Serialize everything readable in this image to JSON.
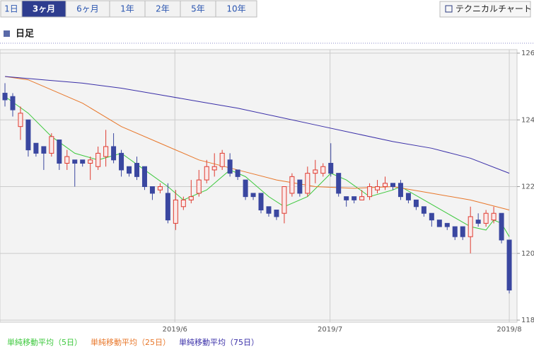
{
  "tabs": [
    {
      "label": "1日",
      "selected": false
    },
    {
      "label": "3ヶ月",
      "selected": true
    },
    {
      "label": "6ヶ月",
      "selected": false
    },
    {
      "label": "1年",
      "selected": false
    },
    {
      "label": "2年",
      "selected": false
    },
    {
      "label": "5年",
      "selected": false
    },
    {
      "label": "10年",
      "selected": false
    }
  ],
  "button": "テクニカルチャート",
  "section_title": "日足",
  "chart_data": {
    "type": "candlestick",
    "candles": {
      "up_color": "#e03c31",
      "down_color": "#3a47a0",
      "open": [
        124.8,
        124.7,
        123.8,
        124.0,
        123.3,
        123.2,
        123.0,
        123.4,
        122.7,
        122.8,
        122.8,
        122.7,
        122.6,
        122.9,
        123.2,
        123.0,
        122.6,
        122.7,
        122.6,
        122.0,
        121.9,
        121.8,
        120.9,
        121.4,
        121.6,
        121.8,
        122.2,
        122.5,
        122.6,
        122.8,
        122.5,
        122.2,
        121.8,
        121.8,
        121.4,
        121.3,
        121.2,
        121.8,
        122.2,
        121.8,
        122.4,
        122.4,
        122.7,
        122.4,
        121.7,
        121.7,
        121.6,
        121.7,
        121.9,
        122.0,
        122.1,
        122.1,
        121.8,
        121.6,
        121.4,
        121.2,
        121.0,
        120.9,
        120.8,
        120.8,
        120.5,
        121.0,
        120.9,
        121.0,
        121.2,
        120.4
      ],
      "high": [
        125.1,
        124.8,
        124.4,
        124.0,
        123.3,
        123.2,
        123.6,
        123.4,
        123.1,
        122.8,
        122.8,
        122.9,
        123.2,
        123.7,
        123.6,
        123.1,
        122.6,
        122.9,
        122.6,
        122.0,
        122.1,
        122.1,
        121.9,
        121.7,
        122.2,
        122.5,
        122.8,
        123.0,
        123.1,
        123.0,
        122.5,
        122.2,
        121.8,
        121.8,
        121.4,
        121.3,
        122.0,
        122.4,
        122.2,
        122.6,
        122.8,
        122.7,
        123.3,
        122.4,
        121.7,
        121.7,
        121.9,
        122.1,
        122.2,
        122.3,
        122.1,
        122.2,
        121.8,
        121.6,
        121.4,
        121.2,
        121.0,
        120.9,
        120.8,
        120.8,
        121.4,
        121.2,
        121.3,
        121.4,
        121.2,
        120.4
      ],
      "low": [
        124.4,
        124.1,
        123.4,
        122.9,
        122.9,
        122.5,
        122.9,
        122.5,
        122.5,
        122.0,
        122.6,
        122.2,
        122.5,
        122.6,
        122.7,
        122.3,
        122.3,
        122.2,
        121.9,
        121.6,
        121.8,
        120.9,
        120.7,
        121.3,
        121.5,
        121.7,
        122.1,
        122.3,
        122.5,
        122.3,
        122.2,
        121.6,
        121.6,
        121.2,
        121.1,
        121.0,
        120.9,
        121.7,
        121.7,
        121.7,
        122.1,
        122.3,
        122.3,
        121.7,
        121.4,
        121.5,
        121.6,
        121.6,
        121.8,
        121.9,
        121.9,
        121.6,
        121.5,
        121.3,
        121.1,
        120.8,
        120.8,
        120.7,
        120.4,
        120.4,
        120.0,
        120.8,
        120.8,
        120.9,
        120.3,
        118.8
      ],
      "close": [
        124.6,
        124.3,
        124.2,
        123.1,
        123.0,
        123.0,
        123.5,
        122.7,
        122.9,
        122.7,
        122.7,
        122.8,
        123.0,
        123.2,
        122.8,
        122.5,
        122.4,
        122.3,
        122.0,
        121.8,
        122.0,
        121.0,
        121.6,
        121.6,
        121.7,
        122.2,
        122.6,
        122.6,
        123.0,
        122.4,
        122.3,
        121.7,
        121.7,
        121.3,
        121.2,
        121.1,
        122.0,
        122.3,
        121.8,
        122.4,
        122.5,
        122.6,
        122.4,
        121.8,
        121.6,
        121.6,
        121.7,
        122.0,
        122.0,
        122.1,
        122.0,
        121.7,
        121.6,
        121.4,
        121.2,
        121.0,
        120.8,
        120.8,
        120.5,
        120.5,
        121.1,
        120.9,
        121.2,
        121.2,
        120.4,
        118.9
      ]
    },
    "series": [
      {
        "name": "単純移動平均（5日）",
        "color": "#3cc83c",
        "x": [
          0,
          3,
          6,
          9,
          12,
          15,
          18,
          21,
          23,
          26,
          29,
          31,
          34,
          36,
          39,
          42,
          44,
          47,
          50,
          51,
          54,
          57,
          60,
          62,
          63,
          64,
          65
        ],
        "values": [
          124.7,
          124.2,
          123.5,
          123.0,
          122.8,
          123.0,
          122.5,
          122.0,
          121.6,
          121.9,
          122.5,
          122.3,
          121.7,
          121.4,
          121.7,
          122.4,
          122.2,
          121.7,
          121.9,
          122.0,
          121.6,
          121.2,
          120.8,
          120.7,
          121.0,
          120.9,
          120.5
        ]
      },
      {
        "name": "単純移動平均（25日）",
        "color": "#e8772a",
        "x": [
          0,
          3,
          6,
          10,
          15,
          20,
          25,
          30,
          35,
          40,
          45,
          50,
          55,
          60,
          65
        ],
        "values": [
          125.3,
          125.2,
          124.9,
          124.5,
          123.8,
          123.3,
          122.8,
          122.5,
          122.2,
          122.0,
          121.95,
          122.0,
          121.8,
          121.6,
          121.3
        ]
      },
      {
        "name": "単純移動平均（75日）",
        "color": "#3a2fa8",
        "x": [
          0,
          5,
          10,
          15,
          20,
          25,
          30,
          35,
          40,
          45,
          50,
          55,
          60,
          65
        ],
        "values": [
          125.3,
          125.2,
          125.1,
          124.95,
          124.75,
          124.55,
          124.35,
          124.1,
          123.85,
          123.6,
          123.35,
          123.15,
          122.85,
          122.4
        ]
      }
    ],
    "xlim": [
      -0.64,
      66
    ],
    "xticks": [
      {
        "value": 21.9,
        "label": "2019/6"
      },
      {
        "value": 41.9,
        "label": "2019/7"
      },
      {
        "value": 65,
        "label": "2019/8"
      }
    ],
    "ylim": [
      118,
      126
    ],
    "yticks": [
      118,
      120,
      122,
      124,
      126
    ],
    "grid": true
  }
}
